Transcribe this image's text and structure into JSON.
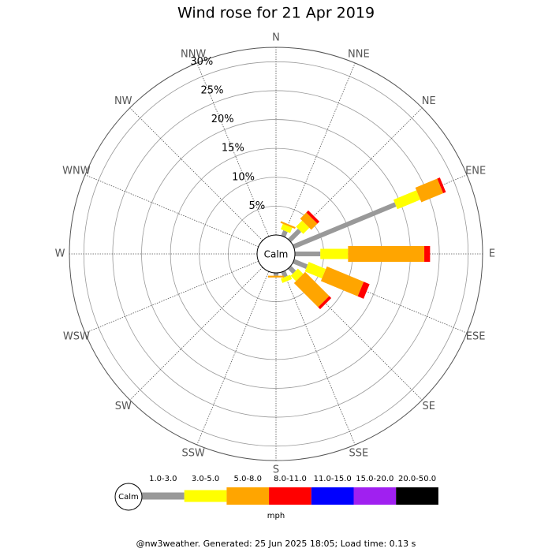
{
  "chart_data": {
    "type": "windrose",
    "title": "Wind rose for 21 Apr 2019",
    "categories": [
      "N",
      "NNE",
      "NE",
      "ENE",
      "E",
      "ESE",
      "SE",
      "SSE",
      "S",
      "SSW",
      "SW",
      "WSW",
      "W",
      "WNW",
      "NW",
      "NNW"
    ],
    "calm_label": "Calm",
    "unit": "mph",
    "rlim": [
      0,
      32.5
    ],
    "rticks": [
      {
        "value": 5,
        "label": "5%"
      },
      {
        "value": 10,
        "label": "10%"
      },
      {
        "value": 15,
        "label": "15%"
      },
      {
        "value": 20,
        "label": "20%"
      },
      {
        "value": 25,
        "label": "25%"
      },
      {
        "value": 30,
        "label": "30%"
      }
    ],
    "series": [
      {
        "name": "1.0-3.0",
        "color": "#999999",
        "values": [
          0,
          1.0,
          2.5,
          19.1,
          4.4,
          2.5,
          1.2,
          1.0,
          0.5,
          0,
          0,
          0,
          0,
          0,
          0,
          0
        ]
      },
      {
        "name": "3.0-5.0",
        "color": "#ffff00",
        "values": [
          0,
          1.0,
          1.5,
          4.3,
          4.8,
          3.2,
          1.3,
          0.8,
          0,
          0,
          0,
          0,
          0,
          0,
          0,
          0
        ]
      },
      {
        "name": "5.0-8.0",
        "color": "#ffa500",
        "values": [
          0,
          0.3,
          1.5,
          4.1,
          13.2,
          6.9,
          5.9,
          0,
          0.3,
          0,
          0,
          0,
          0,
          0,
          0,
          0
        ]
      },
      {
        "name": "8.0-11.0",
        "color": "#ff0000",
        "values": [
          0,
          0,
          0.5,
          0.5,
          1.0,
          1.1,
          0.5,
          0,
          0,
          0,
          0,
          0,
          0,
          0,
          0,
          0
        ]
      },
      {
        "name": "11.0-15.0",
        "color": "#0000ff",
        "values": [
          0,
          0,
          0,
          0,
          0,
          0,
          0,
          0,
          0,
          0,
          0,
          0,
          0,
          0,
          0,
          0
        ]
      },
      {
        "name": "15.0-20.0",
        "color": "#a020f0",
        "values": [
          0,
          0,
          0,
          0,
          0,
          0,
          0,
          0,
          0,
          0,
          0,
          0,
          0,
          0,
          0,
          0
        ]
      },
      {
        "name": "20.0-50.0",
        "color": "#000000",
        "values": [
          0,
          0,
          0,
          0,
          0,
          0,
          0,
          0,
          0,
          0,
          0,
          0,
          0,
          0,
          0,
          0
        ]
      }
    ],
    "footer": "@nw3weather. Generated: 25 Jun 2025 18:05; Load time: 0.13 s"
  }
}
